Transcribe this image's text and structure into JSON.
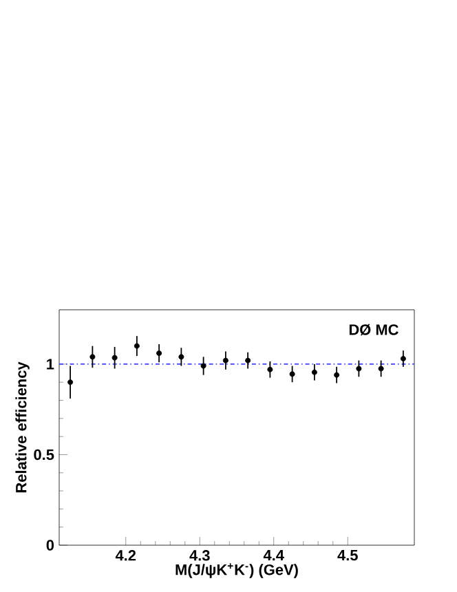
{
  "chart_data": {
    "type": "scatter",
    "xlabel": "M(J/ψK$^{+}$K$^{-}$) (GeV)",
    "ylabel": "Relative efficiency",
    "x": [
      4.125,
      4.155,
      4.185,
      4.215,
      4.245,
      4.275,
      4.305,
      4.335,
      4.365,
      4.395,
      4.425,
      4.455,
      4.485,
      4.515,
      4.545,
      4.575
    ],
    "values": [
      0.9,
      1.04,
      1.035,
      1.1,
      1.06,
      1.04,
      0.99,
      1.02,
      1.02,
      0.97,
      0.945,
      0.955,
      0.94,
      0.975,
      0.975,
      1.03
    ],
    "errors": [
      0.09,
      0.06,
      0.06,
      0.055,
      0.05,
      0.05,
      0.05,
      0.05,
      0.045,
      0.045,
      0.045,
      0.045,
      0.045,
      0.045,
      0.045,
      0.045
    ],
    "color": "#000000",
    "marker": "circle",
    "xlim": [
      4.11,
      4.59
    ],
    "ylim": [
      0,
      1.3
    ],
    "xticks": [
      4.2,
      4.3,
      4.4,
      4.5
    ],
    "yticks": [
      0,
      0.5,
      1
    ],
    "ref_lines": [
      {
        "axis": "y",
        "value": 1,
        "color": "#4040ff",
        "line_style": "dashdotted"
      }
    ],
    "annotations": [
      "DØ MC"
    ]
  }
}
